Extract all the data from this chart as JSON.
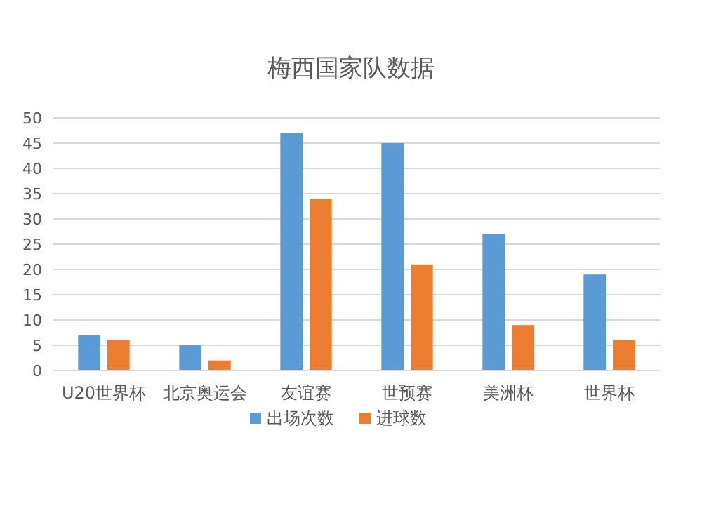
{
  "chart_data": {
    "type": "bar",
    "title": "梅西国家队数据",
    "categories": [
      "U20世界杯",
      "北京奥运会",
      "友谊赛",
      "世预赛",
      "美洲杯",
      "世界杯"
    ],
    "series": [
      {
        "name": "出场次数",
        "color": "#5b9bd5",
        "values": [
          7,
          5,
          47,
          45,
          27,
          19
        ]
      },
      {
        "name": "进球数",
        "color": "#ed7d31",
        "values": [
          6,
          2,
          34,
          21,
          9,
          6
        ]
      }
    ],
    "ylim": [
      0,
      50
    ],
    "yticks": [
      0,
      5,
      10,
      15,
      20,
      25,
      30,
      35,
      40,
      45,
      50
    ],
    "grid": "y",
    "legend": "bottom"
  }
}
